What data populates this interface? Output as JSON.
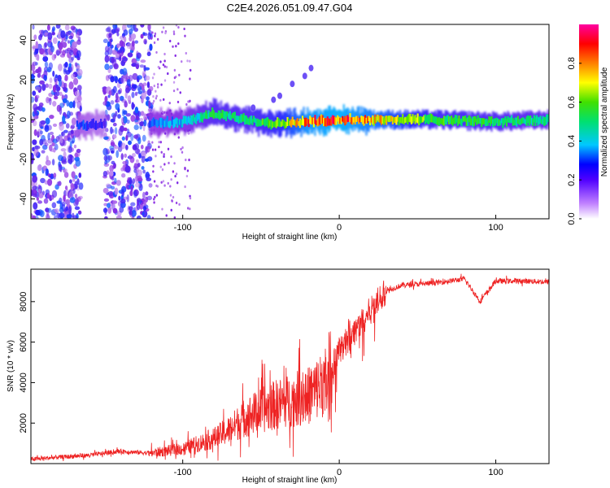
{
  "figure_title": "C2E4.2026.051.09.47.G04",
  "chart_data": [
    {
      "type": "heatmap",
      "xlabel": "Height of straight line (km)",
      "ylabel": "Frequency (Hz)",
      "xlim": [
        -197,
        134
      ],
      "ylim": [
        -50,
        48
      ],
      "x_ticks": [
        -100,
        0,
        100
      ],
      "y_ticks": [
        -40,
        -20,
        0,
        20,
        40
      ],
      "x_tick_labels": [
        "-100",
        "0",
        "100"
      ],
      "y_tick_labels": [
        "-40",
        "-20",
        "0",
        "20",
        "40"
      ],
      "colorbar": {
        "label": "Normalized spectral amplitude",
        "range": [
          0,
          1
        ],
        "ticks": [
          0.0,
          0.2,
          0.4,
          0.6,
          0.8
        ],
        "tick_labels": [
          "0.0",
          "0.2",
          "0.4",
          "0.6",
          "0.8"
        ],
        "colormap": [
          "#ffffff",
          "#8a2be2",
          "#2020ff",
          "#00c8ff",
          "#00e070",
          "#40e000",
          "#ffff00",
          "#ff8000",
          "#ff0000",
          "#ff00a0"
        ]
      },
      "ridge": {
        "description_points_x": [
          -165,
          -150,
          -120,
          -100,
          -80,
          -60,
          -40,
          -20,
          0,
          20,
          60,
          100,
          134
        ],
        "center_frequency": [
          -3,
          -2,
          -2,
          -1,
          3,
          0,
          -2,
          -1,
          0,
          0,
          0,
          -1,
          0
        ],
        "peak_amplitude": [
          0.25,
          0.2,
          0.3,
          0.35,
          0.5,
          0.5,
          0.6,
          0.85,
          0.9,
          0.8,
          0.55,
          0.5,
          0.45
        ]
      },
      "noise_regions_x": [
        [
          -197,
          -165
        ],
        [
          -150,
          -120
        ]
      ]
    },
    {
      "type": "line",
      "xlabel": "Height of straight line (km)",
      "ylabel": "SNR (10 * v/v)",
      "xlim": [
        -197,
        134
      ],
      "ylim": [
        0,
        9600
      ],
      "x_ticks": [
        -100,
        0,
        100
      ],
      "y_ticks": [
        2000,
        4000,
        6000,
        8000
      ],
      "x_tick_labels": [
        "-100",
        "0",
        "100"
      ],
      "y_tick_labels": [
        "2000",
        "4000",
        "6000",
        "8000"
      ],
      "series": [
        {
          "name": "SNR",
          "color": "#ee2222",
          "x": [
            -197,
            -180,
            -160,
            -140,
            -120,
            -100,
            -80,
            -70,
            -60,
            -50,
            -40,
            -30,
            -20,
            -10,
            0,
            10,
            20,
            30,
            40,
            60,
            80,
            90,
            100,
            120,
            134
          ],
          "y": [
            200,
            300,
            400,
            600,
            500,
            700,
            1200,
            1600,
            2200,
            2500,
            2800,
            3000,
            3200,
            3800,
            5500,
            6500,
            7500,
            8500,
            8800,
            8900,
            9100,
            8000,
            9000,
            9000,
            8950
          ]
        }
      ]
    }
  ]
}
